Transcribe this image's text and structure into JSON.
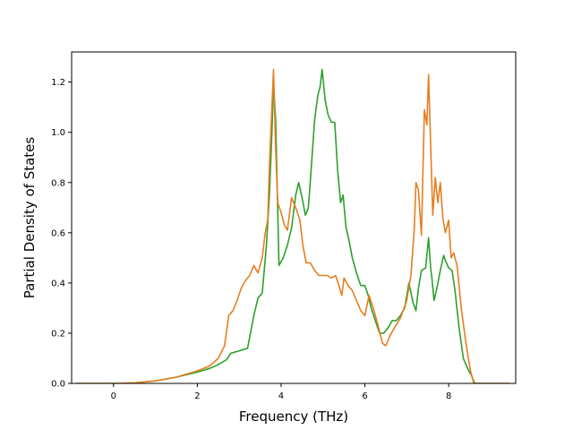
{
  "chart_data": {
    "type": "line",
    "title": "",
    "xlabel": "Frequency (THz)",
    "ylabel": "Partial Density of States",
    "xlim": [
      -1.0,
      9.6
    ],
    "ylim": [
      0.0,
      1.32
    ],
    "xticks": [
      0,
      2,
      4,
      6,
      8
    ],
    "yticks": [
      0.0,
      0.2,
      0.4,
      0.6,
      0.8,
      1.0,
      1.2
    ],
    "xtick_labels": [
      "0",
      "2",
      "4",
      "6",
      "8"
    ],
    "ytick_labels": [
      "0.0",
      "0.2",
      "0.4",
      "0.6",
      "0.8",
      "1.0",
      "1.2"
    ],
    "grid": false,
    "legend": "none",
    "series": [
      {
        "color": "#2ca02c",
        "x": [
          -0.9,
          -0.5,
          0.0,
          0.5,
          1.0,
          1.5,
          2.0,
          2.3,
          2.5,
          2.7,
          2.8,
          3.0,
          3.2,
          3.35,
          3.45,
          3.55,
          3.65,
          3.72,
          3.78,
          3.82,
          3.87,
          3.95,
          4.05,
          4.15,
          4.25,
          4.35,
          4.42,
          4.5,
          4.58,
          4.65,
          4.72,
          4.8,
          4.88,
          4.93,
          4.98,
          5.05,
          5.12,
          5.2,
          5.28,
          5.35,
          5.42,
          5.48,
          5.55,
          5.62,
          5.7,
          5.8,
          5.9,
          6.0,
          6.08,
          6.15,
          6.25,
          6.35,
          6.45,
          6.55,
          6.65,
          6.75,
          6.85,
          6.95,
          7.05,
          7.15,
          7.22,
          7.28,
          7.35,
          7.45,
          7.52,
          7.57,
          7.6,
          7.65,
          7.72,
          7.8,
          7.88,
          7.92,
          8.0,
          8.08,
          8.15,
          8.25,
          8.35,
          8.45,
          8.55,
          8.62,
          9.0,
          9.45
        ],
        "y": [
          0.0,
          0.0,
          0.0,
          0.002,
          0.01,
          0.025,
          0.045,
          0.06,
          0.075,
          0.095,
          0.12,
          0.13,
          0.14,
          0.27,
          0.34,
          0.36,
          0.55,
          0.75,
          1.0,
          1.19,
          1.05,
          0.47,
          0.5,
          0.55,
          0.62,
          0.75,
          0.8,
          0.74,
          0.67,
          0.7,
          0.86,
          1.05,
          1.15,
          1.18,
          1.25,
          1.13,
          1.07,
          1.04,
          1.04,
          0.85,
          0.72,
          0.75,
          0.62,
          0.57,
          0.5,
          0.44,
          0.39,
          0.39,
          0.35,
          0.3,
          0.25,
          0.2,
          0.2,
          0.22,
          0.25,
          0.25,
          0.27,
          0.3,
          0.4,
          0.32,
          0.29,
          0.38,
          0.45,
          0.46,
          0.58,
          0.46,
          0.42,
          0.33,
          0.38,
          0.45,
          0.51,
          0.49,
          0.46,
          0.45,
          0.37,
          0.22,
          0.1,
          0.06,
          0.03,
          0.0,
          0.0,
          0.0
        ]
      },
      {
        "color": "#e67e22",
        "x": [
          -0.9,
          -0.5,
          0.0,
          0.5,
          1.0,
          1.5,
          2.0,
          2.3,
          2.5,
          2.65,
          2.75,
          2.85,
          2.95,
          3.05,
          3.15,
          3.25,
          3.35,
          3.45,
          3.55,
          3.62,
          3.68,
          3.73,
          3.78,
          3.82,
          3.87,
          3.92,
          4.0,
          4.08,
          4.15,
          4.25,
          4.35,
          4.45,
          4.52,
          4.6,
          4.7,
          4.8,
          4.9,
          5.0,
          5.1,
          5.2,
          5.3,
          5.38,
          5.45,
          5.5,
          5.6,
          5.7,
          5.8,
          5.9,
          6.0,
          6.1,
          6.2,
          6.3,
          6.42,
          6.5,
          6.6,
          6.7,
          6.85,
          7.0,
          7.1,
          7.18,
          7.22,
          7.28,
          7.35,
          7.42,
          7.48,
          7.52,
          7.57,
          7.62,
          7.68,
          7.74,
          7.8,
          7.86,
          7.92,
          8.0,
          8.06,
          8.12,
          8.2,
          8.3,
          8.38,
          8.45,
          8.52,
          8.6,
          9.0,
          9.45
        ],
        "y": [
          0.0,
          0.0,
          0.0,
          0.002,
          0.01,
          0.025,
          0.05,
          0.07,
          0.1,
          0.15,
          0.27,
          0.29,
          0.33,
          0.38,
          0.41,
          0.43,
          0.47,
          0.44,
          0.5,
          0.6,
          0.65,
          0.9,
          1.1,
          1.25,
          0.93,
          0.72,
          0.68,
          0.63,
          0.61,
          0.74,
          0.7,
          0.65,
          0.55,
          0.48,
          0.48,
          0.45,
          0.43,
          0.43,
          0.43,
          0.42,
          0.43,
          0.39,
          0.35,
          0.42,
          0.39,
          0.37,
          0.33,
          0.29,
          0.27,
          0.35,
          0.3,
          0.24,
          0.16,
          0.15,
          0.19,
          0.22,
          0.26,
          0.33,
          0.43,
          0.62,
          0.8,
          0.77,
          0.59,
          1.09,
          1.03,
          1.23,
          0.95,
          0.67,
          0.82,
          0.72,
          0.8,
          0.66,
          0.6,
          0.65,
          0.5,
          0.52,
          0.47,
          0.3,
          0.2,
          0.12,
          0.05,
          0.0,
          0.0,
          0.0
        ]
      }
    ]
  }
}
